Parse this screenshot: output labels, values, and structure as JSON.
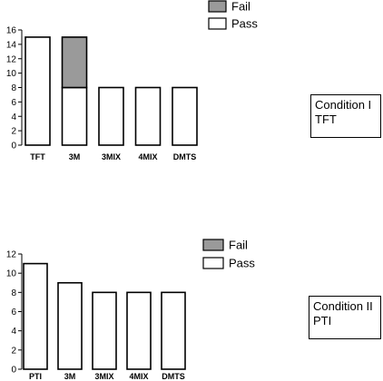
{
  "colors": {
    "pass": "#ffffff",
    "fail": "#9a9a9a",
    "stroke": "#000000"
  },
  "chart_data": [
    {
      "type": "bar",
      "stacked": true,
      "categories": [
        "TFT",
        "3M",
        "3MIX",
        "4MIX",
        "DMTS"
      ],
      "series": [
        {
          "name": "Pass",
          "values": [
            15,
            8,
            8,
            8,
            8
          ]
        },
        {
          "name": "Fail",
          "values": [
            0,
            7,
            0,
            0,
            0
          ]
        }
      ],
      "ylim": [
        0,
        16
      ],
      "yticks": [
        0,
        2,
        4,
        6,
        8,
        10,
        12,
        14,
        16
      ],
      "legend": [
        "Fail",
        "Pass"
      ],
      "legend_position": "top-right",
      "label_lines": [
        "Condition I",
        "TFT"
      ],
      "grid": false
    },
    {
      "type": "bar",
      "stacked": true,
      "categories": [
        "PTI",
        "3M",
        "3MIX",
        "4MIX",
        "DMTS"
      ],
      "series": [
        {
          "name": "Pass",
          "values": [
            11,
            9,
            8,
            8,
            8
          ]
        },
        {
          "name": "Fail",
          "values": [
            0,
            0,
            0,
            0,
            0
          ]
        }
      ],
      "ylim": [
        0,
        12
      ],
      "yticks": [
        0,
        2,
        4,
        6,
        8,
        10,
        12
      ],
      "legend": [
        "Fail",
        "Pass"
      ],
      "legend_position": "top-right",
      "label_lines": [
        "Condition II",
        "PTI"
      ],
      "grid": false
    }
  ]
}
